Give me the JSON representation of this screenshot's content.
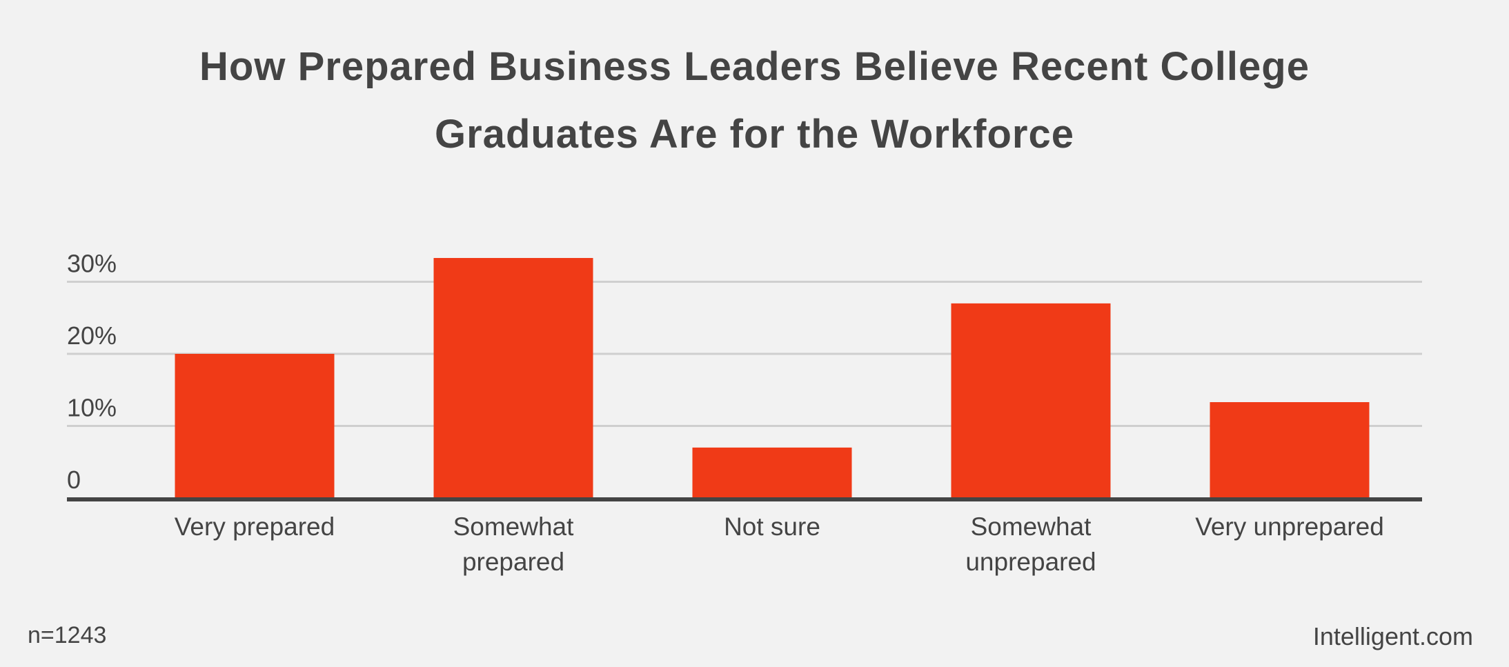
{
  "chart_data": {
    "type": "bar",
    "title_lines": [
      "How Prepared Business Leaders Believe Recent College",
      "Graduates Are for the Workforce"
    ],
    "categories": [
      [
        "Very prepared"
      ],
      [
        "Somewhat",
        "prepared"
      ],
      [
        "Not sure"
      ],
      [
        "Somewhat",
        "unprepared"
      ],
      [
        "Very unprepared"
      ]
    ],
    "values": [
      20,
      33.3,
      7,
      27,
      13.3
    ],
    "yticks": [
      {
        "value": 0,
        "label": "0"
      },
      {
        "value": 10,
        "label": "10%"
      },
      {
        "value": 20,
        "label": "20%"
      },
      {
        "value": 30,
        "label": "30%"
      }
    ],
    "ylim": [
      0,
      35
    ],
    "grid": true,
    "bar_color": "#f03a17"
  },
  "footer": {
    "sample": "n=1243",
    "source": "Intelligent.com"
  }
}
